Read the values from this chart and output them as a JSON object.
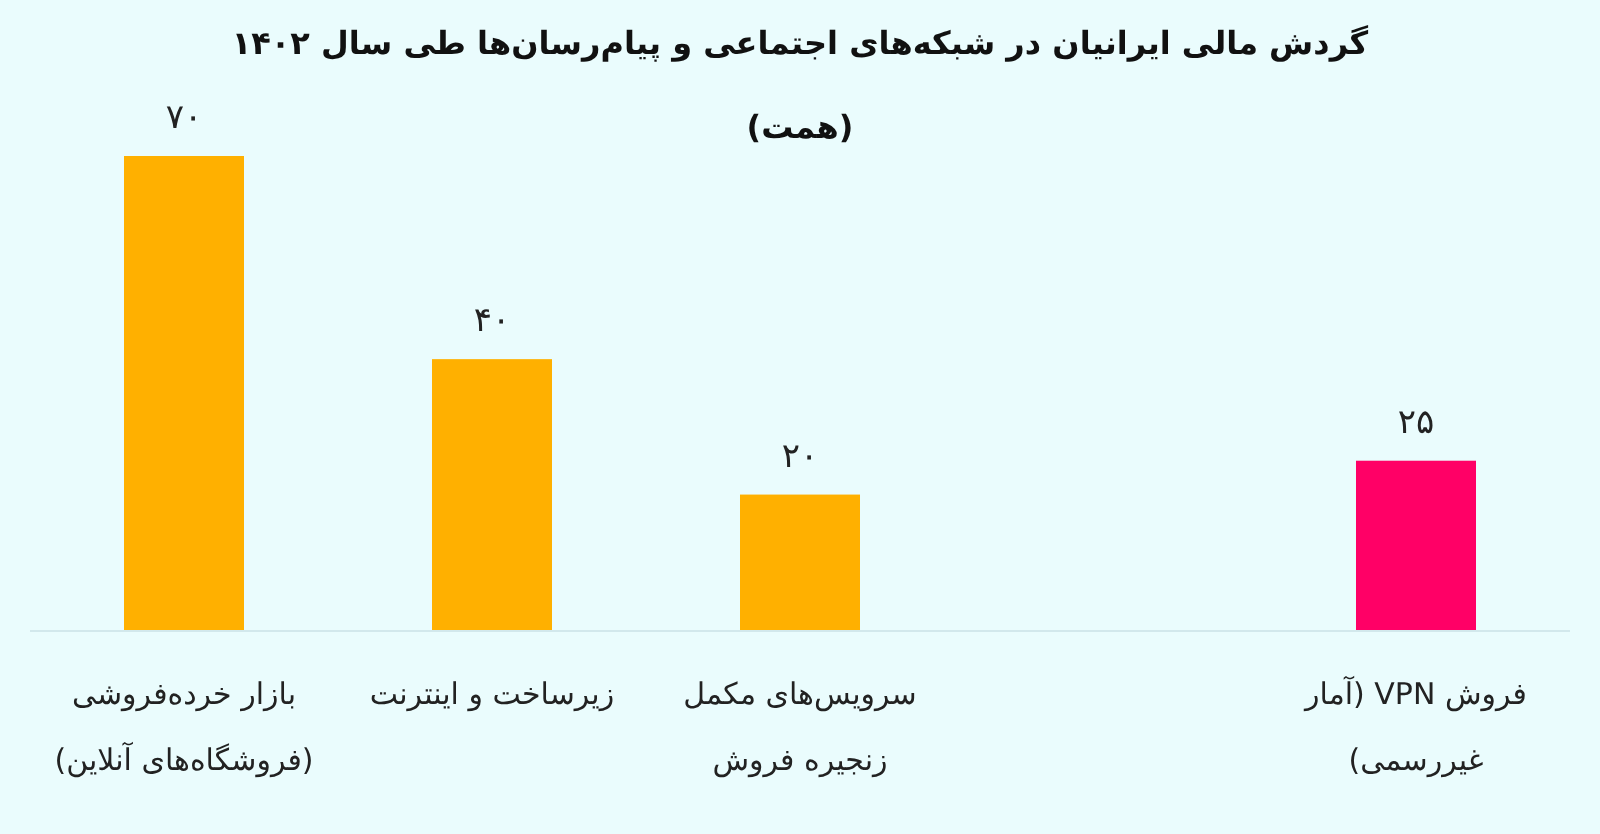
{
  "chart_data": {
    "type": "bar",
    "title": "گردش مالی ایرانیان در شبکه‌های اجتماعی و پیام‌رسان‌ها طی سال ۱۴۰۲",
    "subtitle": "(همت)",
    "categories": [
      "بازار خرده‌فروشی (فروشگاه‌های آنلاین)",
      "زیرساخت و اینترنت",
      "سرویس‌های مکمل زنجیره فروش",
      null,
      "فروش VPN (آمار غیررسمی)"
    ],
    "values": [
      70,
      40,
      20,
      null,
      25
    ],
    "colors": [
      "#ffb000",
      "#ffb000",
      "#ffb000",
      null,
      "#ff0066"
    ],
    "value_labels": [
      "۷۰",
      "۴۰",
      "۲۰",
      null,
      "۲۵"
    ]
  }
}
